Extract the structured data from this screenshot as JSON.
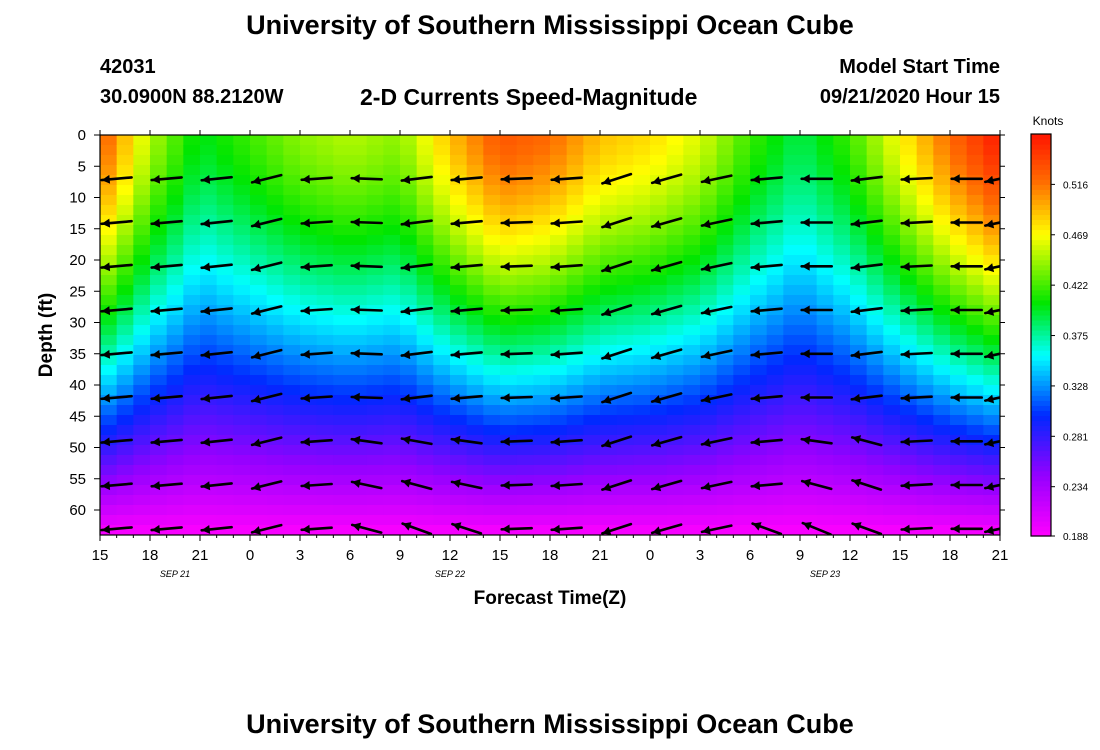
{
  "title_top": "University of Southern Mississippi Ocean Cube",
  "title_bottom": "University of Southern Mississippi Ocean Cube",
  "station_id": "42031",
  "station_coords": "30.0900N 88.2120W",
  "plot_title": "2-D Currents Speed-Magnitude",
  "model_start_label": "Model Start Time",
  "model_start_value": "09/21/2020 Hour 15",
  "colorbar_unit": "Knots",
  "colors": {
    "background": "#ffffff",
    "arrow": "#000000",
    "axis": "#000000"
  },
  "chart_data": {
    "type": "heatmap",
    "title": "2-D Currents Speed-Magnitude",
    "xlabel": "Forecast Time(Z)",
    "ylabel": "Depth (ft)",
    "x_tick_labels": [
      "15",
      "18",
      "21",
      "0",
      "3",
      "6",
      "9",
      "12",
      "15",
      "18",
      "21",
      "0",
      "3",
      "6",
      "9",
      "12",
      "15",
      "18",
      "21"
    ],
    "x_hours": [
      0,
      3,
      6,
      9,
      12,
      15,
      18,
      21,
      24,
      27,
      30,
      33,
      36,
      39,
      42,
      45,
      48,
      51,
      54
    ],
    "date_labels": [
      {
        "text": "SEP 21",
        "hour": 4.5
      },
      {
        "text": "SEP 22",
        "hour": 21
      },
      {
        "text": "SEP 23",
        "hour": 43.5
      }
    ],
    "y_ticks": [
      0,
      5,
      10,
      15,
      20,
      25,
      30,
      35,
      40,
      45,
      50,
      55,
      60
    ],
    "ylim": [
      0,
      64
    ],
    "xlim": [
      0,
      54
    ],
    "colorbar": {
      "label": "Knots",
      "min": 0.188,
      "max": 0.563,
      "ticks": [
        0.188,
        0.234,
        0.281,
        0.328,
        0.375,
        0.422,
        0.469,
        0.516
      ]
    },
    "speed_profile_surface": [
      {
        "hour": 0,
        "value": 0.53
      },
      {
        "hour": 3,
        "value": 0.45
      },
      {
        "hour": 6,
        "value": 0.4
      },
      {
        "hour": 9,
        "value": 0.42
      },
      {
        "hour": 12,
        "value": 0.44
      },
      {
        "hour": 15,
        "value": 0.45
      },
      {
        "hour": 18,
        "value": 0.44
      },
      {
        "hour": 21,
        "value": 0.49
      },
      {
        "hour": 24,
        "value": 0.53
      },
      {
        "hour": 27,
        "value": 0.52
      },
      {
        "hour": 30,
        "value": 0.49
      },
      {
        "hour": 33,
        "value": 0.48
      },
      {
        "hour": 36,
        "value": 0.46
      },
      {
        "hour": 39,
        "value": 0.42
      },
      {
        "hour": 42,
        "value": 0.39
      },
      {
        "hour": 45,
        "value": 0.42
      },
      {
        "hour": 48,
        "value": 0.47
      },
      {
        "hour": 51,
        "value": 0.52
      },
      {
        "hour": 54,
        "value": 0.56
      }
    ],
    "vector_depths": [
      7,
      14,
      21,
      28,
      35,
      42,
      49,
      56,
      63
    ],
    "vector_hours": [
      1,
      4,
      7,
      10,
      13,
      16,
      19,
      22,
      25,
      28,
      31,
      34,
      37,
      40,
      43,
      46,
      49,
      52,
      54
    ],
    "vector_angle_deg": [
      [
        -175,
        -175,
        -174,
        -166,
        -176,
        178,
        -173,
        -175,
        -178,
        -176,
        -162,
        -164,
        -168,
        -175,
        180,
        -173,
        -177,
        180,
        -168
      ],
      [
        -175,
        -175,
        -174,
        -166,
        -176,
        178,
        -173,
        -175,
        -178,
        -176,
        -162,
        -164,
        -168,
        -175,
        180,
        -173,
        -177,
        180,
        -168
      ],
      [
        -175,
        -175,
        -174,
        -166,
        -176,
        178,
        -173,
        -175,
        -178,
        -176,
        -162,
        -164,
        -168,
        -175,
        180,
        -173,
        -177,
        180,
        -168
      ],
      [
        -175,
        -175,
        -174,
        -166,
        -176,
        178,
        -173,
        -175,
        -178,
        -176,
        -162,
        -164,
        -168,
        -175,
        180,
        -173,
        -177,
        180,
        -168
      ],
      [
        -175,
        -175,
        -174,
        -166,
        -176,
        178,
        -173,
        -175,
        -178,
        -176,
        -162,
        -164,
        -168,
        -175,
        180,
        -173,
        -177,
        180,
        -168
      ],
      [
        -175,
        -175,
        -174,
        -166,
        -176,
        178,
        -173,
        -175,
        -178,
        -176,
        -162,
        -164,
        -168,
        -175,
        180,
        -173,
        -177,
        180,
        -168
      ],
      [
        -175,
        -175,
        -174,
        -166,
        -176,
        172,
        170,
        172,
        -178,
        -176,
        -162,
        -164,
        -168,
        -175,
        172,
        165,
        -177,
        180,
        -168
      ],
      [
        -175,
        -175,
        -174,
        -166,
        -176,
        168,
        165,
        168,
        -178,
        -176,
        -162,
        -164,
        -168,
        -175,
        165,
        162,
        -177,
        180,
        -168
      ],
      [
        -175,
        -175,
        -174,
        -166,
        -176,
        165,
        160,
        162,
        -178,
        -176,
        -162,
        -164,
        -168,
        160,
        158,
        160,
        -177,
        180,
        -168
      ]
    ]
  }
}
